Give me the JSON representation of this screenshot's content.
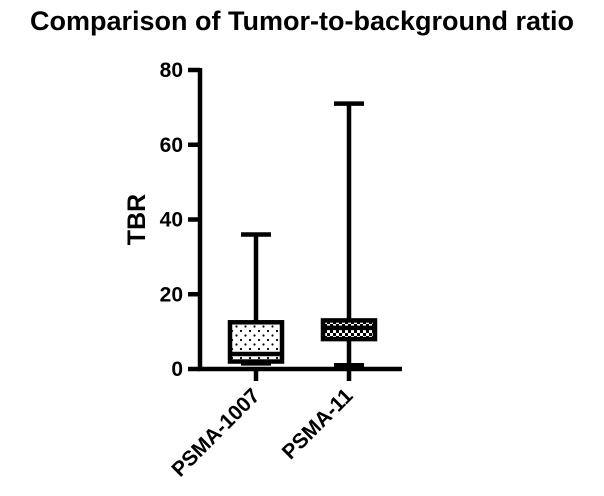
{
  "chart_data": {
    "type": "box",
    "title": "Comparison of Tumor-to-background ratio",
    "ylabel": "TBR",
    "xlabel": "",
    "ylim": [
      0,
      80
    ],
    "yticks": [
      "0",
      "20",
      "40",
      "60",
      "80"
    ],
    "grid": false,
    "categories": [
      "PSMA-1007",
      "PSMA-11"
    ],
    "boxes": [
      {
        "category": "PSMA-1007",
        "min": 1.5,
        "q1": 2,
        "median": 4,
        "q3": 12.5,
        "max": 36,
        "fill": "dots"
      },
      {
        "category": "PSMA-11",
        "min": 1,
        "q1": 8,
        "median": 11,
        "q3": 13,
        "max": 71,
        "fill": "checker"
      }
    ]
  },
  "colors": {
    "ink": "#000000",
    "background": "#ffffff"
  }
}
